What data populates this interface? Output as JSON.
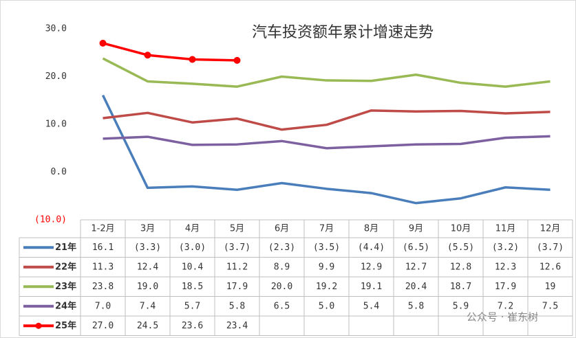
{
  "chart_data": {
    "type": "line",
    "title": "汽车投资额年累计增速走势",
    "categories": [
      "1-2月",
      "3月",
      "4月",
      "5月",
      "6月",
      "7月",
      "8月",
      "9月",
      "10月",
      "11月",
      "12月"
    ],
    "ylim": [
      -10,
      30
    ],
    "yticks": [
      {
        "value": -10,
        "label": "(10.0)"
      },
      {
        "value": 0,
        "label": "0.0"
      },
      {
        "value": 10,
        "label": "10.0"
      },
      {
        "value": 20,
        "label": "20.0"
      },
      {
        "value": 30,
        "label": "30.0"
      }
    ],
    "series": [
      {
        "name": "21年",
        "color": "#4a7ebb",
        "values": [
          16.1,
          -3.3,
          -3.0,
          -3.7,
          -2.3,
          -3.5,
          -4.4,
          -6.5,
          -5.5,
          -3.2,
          -3.7
        ],
        "value_labels": [
          "16.1",
          "(3.3)",
          "(3.0)",
          "(3.7)",
          "(2.3)",
          "(3.5)",
          "(4.4)",
          "(6.5)",
          "(5.5)",
          "(3.2)",
          "(3.7)"
        ]
      },
      {
        "name": "22年",
        "color": "#be4b48",
        "values": [
          11.3,
          12.4,
          10.4,
          11.2,
          8.9,
          9.9,
          12.9,
          12.7,
          12.8,
          12.3,
          12.6
        ],
        "value_labels": [
          "11.3",
          "12.4",
          "10.4",
          "11.2",
          "8.9",
          "9.9",
          "12.9",
          "12.7",
          "12.8",
          "12.3",
          "12.6"
        ]
      },
      {
        "name": "23年",
        "color": "#98b954",
        "values": [
          23.8,
          19.0,
          18.5,
          17.9,
          20.0,
          19.2,
          19.1,
          20.4,
          18.7,
          17.9,
          19
        ],
        "value_labels": [
          "23.8",
          "19.0",
          "18.5",
          "17.9",
          "20.0",
          "19.2",
          "19.1",
          "20.4",
          "18.7",
          "17.9",
          "19"
        ]
      },
      {
        "name": "24年",
        "color": "#7d60a0",
        "values": [
          7.0,
          7.4,
          5.7,
          5.8,
          6.5,
          5.0,
          5.4,
          5.8,
          5.9,
          7.2,
          7.5
        ],
        "value_labels": [
          "7.0",
          "7.4",
          "5.7",
          "5.8",
          "6.5",
          "5.0",
          "5.4",
          "5.8",
          "5.9",
          "7.2",
          "7.5"
        ]
      },
      {
        "name": "25年",
        "color": "#ff0000",
        "markers": true,
        "values": [
          27.0,
          24.5,
          23.6,
          23.4,
          null,
          null,
          null,
          null,
          null,
          null,
          null
        ],
        "value_labels": [
          "27.0",
          "24.5",
          "23.6",
          "23.4",
          null,
          null,
          null,
          null,
          null,
          null,
          null
        ]
      }
    ],
    "watermark": "公众号 · 崔东树"
  }
}
